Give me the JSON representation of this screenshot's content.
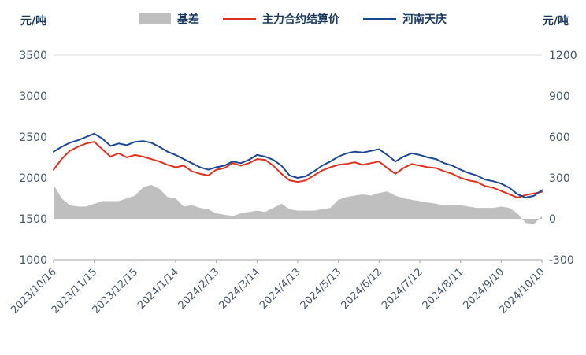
{
  "header": {
    "left_unit": "元/吨",
    "right_unit": "元/吨"
  },
  "legend": [
    {
      "label": "基差",
      "type": "area",
      "color": "#bfbfbf"
    },
    {
      "label": "主力合约结算价",
      "type": "line",
      "color": "#e0301e"
    },
    {
      "label": "河南天庆",
      "type": "line",
      "color": "#1b4693"
    }
  ],
  "chart_data": {
    "type": "combo",
    "description": "Daily commodity price chart: gray area = basis (right axis), red line = main contract settlement price (left axis), dark blue line = Henan Tianqing spot price (left axis)",
    "x_tick_labels": [
      "2023/10/16",
      "2023/11/15",
      "2023/12/15",
      "2024/1/14",
      "2024/2/13",
      "2024/3/14",
      "2024/4/13",
      "2024/5/13",
      "2024/6/12",
      "2024/7/12",
      "2024/8/11",
      "2024/9/10",
      "2024/10/10"
    ],
    "x_tick_indices": [
      0,
      5,
      10,
      15,
      20,
      25,
      30,
      35,
      40,
      45,
      50,
      55,
      60
    ],
    "left_axis": {
      "label": "元/吨",
      "min": 1000,
      "max": 3500,
      "ticks": [
        3500,
        3000,
        2500,
        2000,
        1500,
        1000
      ]
    },
    "right_axis": {
      "label": "元/吨",
      "min": -300,
      "max": 1200,
      "ticks": [
        1200,
        900,
        600,
        300,
        0,
        -300
      ]
    },
    "grid": "top border and bottom axis only",
    "legend_position": "top",
    "series": [
      {
        "name": "基差",
        "type": "area",
        "axis": "right",
        "color": "#bfbfbf",
        "values": [
          250,
          150,
          100,
          90,
          90,
          110,
          130,
          130,
          130,
          150,
          170,
          230,
          250,
          220,
          160,
          150,
          90,
          100,
          80,
          70,
          40,
          30,
          20,
          40,
          50,
          60,
          50,
          80,
          110,
          70,
          60,
          60,
          60,
          70,
          80,
          140,
          160,
          170,
          180,
          170,
          190,
          200,
          170,
          150,
          140,
          130,
          120,
          110,
          100,
          100,
          100,
          90,
          80,
          80,
          80,
          90,
          80,
          40,
          -30,
          -40,
          20
        ]
      },
      {
        "name": "主力合约结算价",
        "type": "line",
        "axis": "left",
        "color": "#e0301e",
        "values": [
          2100,
          2230,
          2330,
          2380,
          2420,
          2440,
          2350,
          2260,
          2300,
          2250,
          2280,
          2260,
          2230,
          2200,
          2160,
          2130,
          2150,
          2080,
          2050,
          2030,
          2100,
          2120,
          2180,
          2150,
          2180,
          2230,
          2220,
          2150,
          2050,
          1970,
          1950,
          1970,
          2030,
          2090,
          2130,
          2160,
          2170,
          2190,
          2160,
          2180,
          2200,
          2120,
          2050,
          2120,
          2170,
          2150,
          2130,
          2120,
          2080,
          2050,
          2000,
          1970,
          1950,
          1900,
          1880,
          1840,
          1800,
          1760,
          1790,
          1810,
          1830
        ]
      },
      {
        "name": "河南天庆",
        "type": "line",
        "axis": "left",
        "color": "#1b4693",
        "values": [
          2320,
          2380,
          2430,
          2460,
          2500,
          2540,
          2480,
          2390,
          2420,
          2400,
          2440,
          2450,
          2430,
          2380,
          2320,
          2280,
          2230,
          2180,
          2130,
          2100,
          2130,
          2150,
          2200,
          2180,
          2220,
          2280,
          2260,
          2220,
          2150,
          2030,
          2000,
          2020,
          2080,
          2150,
          2200,
          2260,
          2300,
          2320,
          2310,
          2330,
          2350,
          2280,
          2200,
          2260,
          2300,
          2280,
          2250,
          2230,
          2180,
          2150,
          2100,
          2060,
          2030,
          1980,
          1960,
          1930,
          1880,
          1800,
          1760,
          1780,
          1850
        ]
      }
    ]
  }
}
